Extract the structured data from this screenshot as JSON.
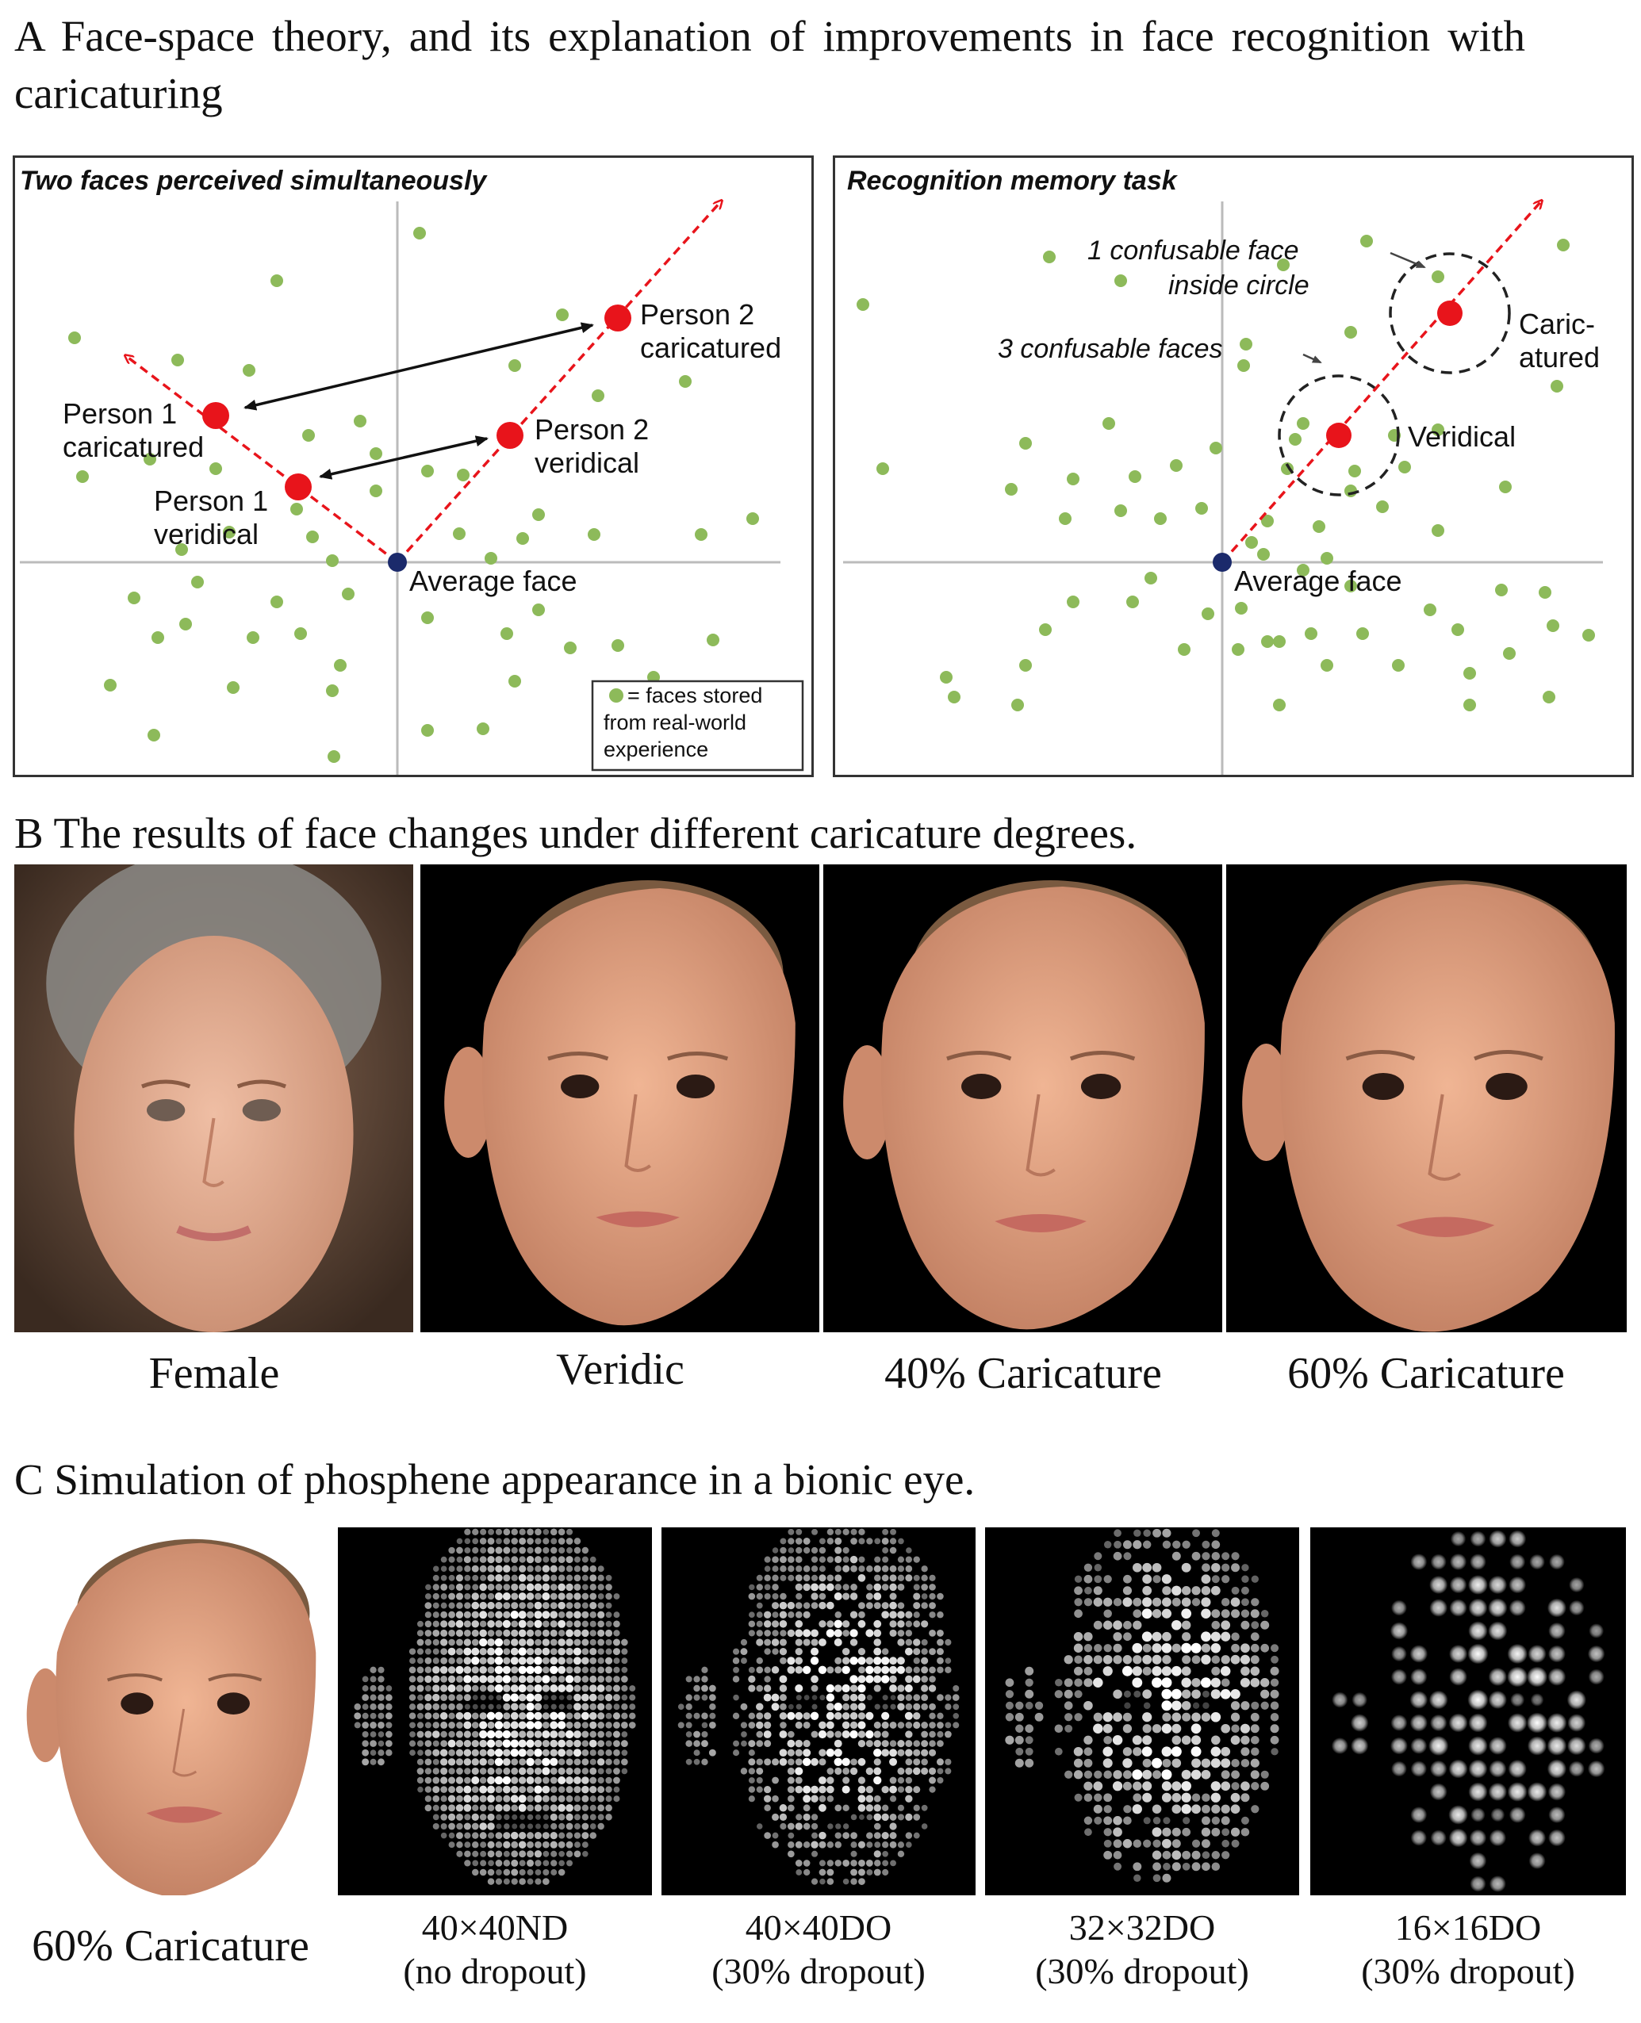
{
  "figure": {
    "heading_a": "A Face-space theory, and its explanation of improvements in face recognition with caricaturing",
    "heading_b": "B The results of face changes under different caricature degrees.",
    "heading_c": "C Simulation of phosphene appearance in a bionic eye."
  },
  "panel_left": {
    "title": "Two faces perceived simultaneously",
    "labels": {
      "p2_car_1": "Person 2",
      "p2_car_2": "caricatured",
      "p1_car_1": "Person 1",
      "p1_car_2": "caricatured",
      "p2_ver_1": "Person 2",
      "p2_ver_2": "veridical",
      "p1_ver_1": "Person 1",
      "p1_ver_2": "veridical",
      "avg": "Average face"
    },
    "legend": {
      "line1": "= faces stored",
      "line2": "from real-world",
      "line3": "experience"
    }
  },
  "panel_right": {
    "title": "Recognition memory task",
    "labels": {
      "confusable1_1": "1 confusable face",
      "confusable1_2": "inside circle",
      "confusable3": "3 confusable faces",
      "car_1": "Caric-",
      "car_2": "atured",
      "ver": "Veridical",
      "avg": "Average face"
    }
  },
  "row_b": {
    "captions": [
      "Female",
      "Veridic",
      "40% Caricature",
      "60% Caricature"
    ]
  },
  "row_c": {
    "first_caption": "60% Caricature",
    "captions": [
      {
        "line1": "40×40ND",
        "line2": "(no dropout)"
      },
      {
        "line1": "40×40DO",
        "line2": "(30% dropout)"
      },
      {
        "line1": "32×32DO",
        "line2": "(30% dropout)"
      },
      {
        "line1": "16×16DO",
        "line2": "(30% dropout)"
      }
    ]
  },
  "colors": {
    "dot_green": "#8dba5a",
    "red": "#e8141b",
    "navy": "#1b2a6b",
    "axis": "#bbbbbb",
    "skin": "#e0a079"
  }
}
